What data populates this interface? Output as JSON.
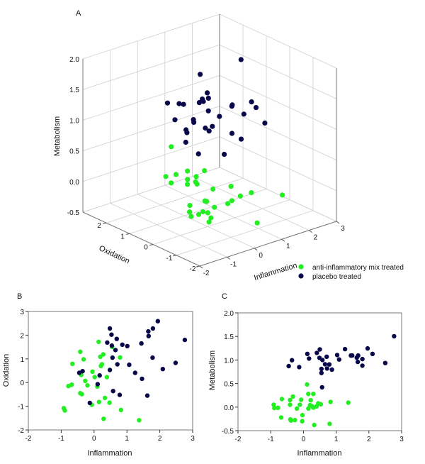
{
  "colors": {
    "anti": "#22ee22",
    "placebo": "#07074a",
    "grid": "#cfcfcf"
  },
  "legend": {
    "anti": "anti-inflammatory mix treated",
    "placebo": "placebo treated"
  },
  "chart_data": [
    {
      "panel": "A",
      "type": "scatter3d",
      "xlabel": "Inflammation",
      "ylabel": "Oxidation",
      "zlabel": "Metabolism",
      "xlim": [
        -2,
        3
      ],
      "ylim": [
        -2,
        3
      ],
      "zlim": [
        -0.5,
        2.0
      ],
      "xticks": [
        -2,
        -1,
        0,
        1,
        2,
        3
      ],
      "yticks": [
        -2,
        -1,
        0,
        1,
        2
      ],
      "zticks": [
        "-0.5",
        "0.0",
        "0.5",
        "1.0",
        "1.5",
        "2.0"
      ],
      "grid": true,
      "legend_position": "bottom-right",
      "series": [
        {
          "name": "anti-inflammatory mix treated",
          "color": "#22ee22",
          "points": [
            [
              -0.92,
              -1.08,
              0.05
            ],
            [
              -0.89,
              -1.18,
              -0.02
            ],
            [
              -0.78,
              -0.15,
              -0.015
            ],
            [
              -0.68,
              -0.09,
              -0.22
            ],
            [
              -0.66,
              0.79,
              0.17
            ],
            [
              -0.42,
              1.3,
              0.15
            ],
            [
              -0.42,
              -0.45,
              0.05
            ],
            [
              -0.39,
              0.32,
              -0.26
            ],
            [
              -0.37,
              -0.49,
              -0.285
            ],
            [
              -0.32,
              0.98,
              0.225
            ],
            [
              -0.27,
              0.07,
              -0.275
            ],
            [
              -0.2,
              -0.12,
              -0.03
            ],
            [
              -0.07,
              -0.94,
              0.05
            ],
            [
              -0.05,
              0.46,
              0.155
            ],
            [
              0.02,
              0.23,
              -0.3
            ],
            [
              0.1,
              -0.17,
              -0.17
            ],
            [
              0.14,
              1.72,
              0.48
            ],
            [
              0.15,
              -0.82,
              0.28
            ],
            [
              0.19,
              1.09,
              -0.03
            ],
            [
              0.21,
              0.7,
              0.04
            ],
            [
              0.24,
              0.77,
              0.145
            ],
            [
              0.28,
              1.19,
              0.02
            ],
            [
              0.29,
              -1.53,
              0.28
            ],
            [
              0.33,
              -0.65,
              -0.01
            ],
            [
              0.39,
              0.23,
              0.015
            ],
            [
              0.47,
              -0.85,
              0.08
            ],
            [
              0.55,
              1.51,
              0.06
            ],
            [
              0.79,
              1.06,
              0.11
            ],
            [
              0.82,
              -1.16,
              -0.355
            ],
            [
              1.37,
              -1.59,
              0.095
            ]
          ]
        },
        {
          "name": "placebo treated",
          "color": "#07074a",
          "points": [
            [
              -0.45,
              0.41,
              0.87
            ],
            [
              -0.35,
              0.48,
              1.0
            ],
            [
              -0.13,
              -0.86,
              0.85
            ],
            [
              0.11,
              -0.07,
              1.13
            ],
            [
              0.17,
              0.3,
              1.03
            ],
            [
              0.4,
              1.69,
              1.15
            ],
            [
              0.48,
              2.28,
              1.045
            ],
            [
              0.48,
              0.53,
              1.225
            ],
            [
              0.53,
              2.02,
              0.81
            ],
            [
              0.54,
              1.56,
              0.725
            ],
            [
              0.56,
              1.05,
              0.42
            ],
            [
              0.58,
              -0.36,
              1.0
            ],
            [
              0.65,
              1.37,
              0.91
            ],
            [
              0.69,
              1.84,
              1.07
            ],
            [
              0.71,
              0.77,
              0.82
            ],
            [
              0.78,
              -0.52,
              0.905
            ],
            [
              0.86,
              1.6,
              0.795
            ],
            [
              1.01,
              1.54,
              1.105
            ],
            [
              1.07,
              0.75,
              1.01
            ],
            [
              1.25,
              0.41,
              1.23
            ],
            [
              1.44,
              1.65,
              1.095
            ],
            [
              1.46,
              0.16,
              1.095
            ],
            [
              1.62,
              -0.55,
              1.05
            ],
            [
              1.65,
              2.16,
              0.96
            ],
            [
              1.66,
              1.96,
              1.095
            ],
            [
              1.78,
              1.05,
              1.02
            ],
            [
              1.79,
              2.28,
              0.88
            ],
            [
              1.94,
              2.59,
              1.245
            ],
            [
              2.09,
              0.57,
              1.13
            ],
            [
              2.48,
              0.83,
              0.935
            ],
            [
              2.76,
              1.8,
              1.505
            ]
          ]
        }
      ]
    },
    {
      "panel": "B",
      "type": "scatter",
      "xlabel": "Inflammation",
      "ylabel": "Oxidation",
      "xlim": [
        -2,
        3
      ],
      "ylim": [
        -2,
        3
      ],
      "xticks": [
        "-2",
        "-1",
        "0",
        "1",
        "2",
        "3"
      ],
      "yticks": [
        "-2",
        "-1",
        "0",
        "1",
        "2",
        "3"
      ],
      "grid": false,
      "series": [
        {
          "name": "anti-inflammatory mix treated",
          "color": "#22ee22",
          "points": [
            [
              0.14,
              1.72
            ],
            [
              0.55,
              1.51
            ],
            [
              -0.42,
              1.3
            ],
            [
              0.28,
              1.19
            ],
            [
              0.19,
              1.09
            ],
            [
              0.79,
              1.06
            ],
            [
              -0.32,
              0.98
            ],
            [
              -0.66,
              0.79
            ],
            [
              0.24,
              0.77
            ],
            [
              0.21,
              0.7
            ],
            [
              -0.05,
              0.46
            ],
            [
              -0.39,
              0.32
            ],
            [
              0.02,
              0.23
            ],
            [
              0.39,
              0.23
            ],
            [
              -0.27,
              0.07
            ],
            [
              -0.2,
              -0.12
            ],
            [
              -0.68,
              -0.09
            ],
            [
              -0.78,
              -0.15
            ],
            [
              0.1,
              -0.17
            ],
            [
              -0.42,
              -0.45
            ],
            [
              -0.37,
              -0.49
            ],
            [
              0.33,
              -0.65
            ],
            [
              0.15,
              -0.82
            ],
            [
              0.47,
              -0.85
            ],
            [
              -0.07,
              -0.94
            ],
            [
              -0.92,
              -1.08
            ],
            [
              -0.89,
              -1.18
            ],
            [
              0.82,
              -1.16
            ],
            [
              0.29,
              -1.53
            ],
            [
              1.37,
              -1.59
            ]
          ]
        },
        {
          "name": "placebo treated",
          "color": "#07074a",
          "points": [
            [
              0.48,
              2.28
            ],
            [
              0.53,
              2.02
            ],
            [
              0.69,
              1.84
            ],
            [
              0.4,
              1.69
            ],
            [
              0.54,
              1.56
            ],
            [
              0.86,
              1.6
            ],
            [
              1.01,
              1.54
            ],
            [
              0.65,
              1.37
            ],
            [
              0.56,
              1.05
            ],
            [
              0.71,
              0.77
            ],
            [
              1.07,
              0.75
            ],
            [
              0.48,
              0.53
            ],
            [
              -0.35,
              0.48
            ],
            [
              -0.45,
              0.41
            ],
            [
              0.17,
              0.3
            ],
            [
              0.11,
              -0.07
            ],
            [
              1.25,
              0.41
            ],
            [
              1.46,
              0.16
            ],
            [
              0.58,
              -0.36
            ],
            [
              0.78,
              -0.52
            ],
            [
              1.62,
              -0.55
            ],
            [
              -0.13,
              -0.86
            ],
            [
              1.44,
              1.65
            ],
            [
              1.94,
              2.59
            ],
            [
              1.65,
              2.16
            ],
            [
              1.79,
              2.28
            ],
            [
              1.66,
              1.96
            ],
            [
              1.78,
              1.05
            ],
            [
              2.09,
              0.57
            ],
            [
              2.48,
              0.83
            ],
            [
              2.76,
              1.8
            ]
          ]
        }
      ]
    },
    {
      "panel": "C",
      "type": "scatter",
      "xlabel": "Inflammation",
      "ylabel": "Metabolism",
      "xlim": [
        -2,
        3
      ],
      "ylim": [
        -0.5,
        2.0
      ],
      "xticks": [
        "-2",
        "-1",
        "0",
        "1",
        "2",
        "3"
      ],
      "yticks": [
        "-0.5",
        "0.0",
        "0.5",
        "1.0",
        "1.5",
        "2.0"
      ],
      "grid": false,
      "series": [
        {
          "name": "anti-inflammatory mix treated",
          "color": "#22ee22",
          "points": [
            [
              0.11,
              0.48
            ],
            [
              0.15,
              0.28
            ],
            [
              0.3,
              0.28
            ],
            [
              -0.32,
              0.225
            ],
            [
              -0.66,
              0.17
            ],
            [
              -0.41,
              0.15
            ],
            [
              -0.07,
              0.155
            ],
            [
              0.22,
              0.145
            ],
            [
              0.83,
              0.11
            ],
            [
              1.37,
              0.095
            ],
            [
              0.45,
              0.08
            ],
            [
              0.53,
              0.06
            ],
            [
              -0.91,
              0.05
            ],
            [
              -0.41,
              0.05
            ],
            [
              -0.11,
              0.05
            ],
            [
              0.2,
              0.04
            ],
            [
              0.26,
              0.02
            ],
            [
              0.4,
              0.015
            ],
            [
              -0.89,
              -0.02
            ],
            [
              -0.78,
              -0.015
            ],
            [
              -0.2,
              -0.03
            ],
            [
              0.15,
              -0.03
            ],
            [
              0.3,
              -0.01
            ],
            [
              -0.03,
              -0.17
            ],
            [
              -0.68,
              -0.22
            ],
            [
              -0.4,
              -0.26
            ],
            [
              -0.38,
              -0.285
            ],
            [
              -0.26,
              -0.275
            ],
            [
              -0.04,
              -0.3
            ],
            [
              0.8,
              -0.355
            ],
            [
              0.33,
              -0.38
            ]
          ]
        },
        {
          "name": "placebo treated",
          "color": "#07074a",
          "points": [
            [
              -0.45,
              0.87
            ],
            [
              -0.35,
              0.995
            ],
            [
              -0.13,
              0.85
            ],
            [
              0.12,
              1.13
            ],
            [
              0.17,
              1.03
            ],
            [
              0.41,
              1.15
            ],
            [
              0.5,
              1.225
            ],
            [
              0.49,
              1.045
            ],
            [
              0.58,
              1.0
            ],
            [
              0.55,
              0.81
            ],
            [
              0.55,
              0.725
            ],
            [
              0.66,
              0.91
            ],
            [
              0.71,
              1.07
            ],
            [
              0.72,
              0.82
            ],
            [
              0.79,
              0.905
            ],
            [
              0.87,
              0.795
            ],
            [
              0.57,
              0.42
            ],
            [
              1.03,
              1.105
            ],
            [
              1.09,
              1.01
            ],
            [
              1.27,
              1.23
            ],
            [
              1.45,
              1.095
            ],
            [
              1.49,
              1.095
            ],
            [
              1.63,
              1.05
            ],
            [
              1.67,
              1.095
            ],
            [
              1.66,
              0.96
            ],
            [
              1.8,
              1.02
            ],
            [
              1.8,
              0.88
            ],
            [
              1.96,
              1.245
            ],
            [
              2.11,
              1.13
            ],
            [
              2.5,
              0.935
            ],
            [
              2.77,
              1.505
            ]
          ]
        }
      ]
    }
  ]
}
